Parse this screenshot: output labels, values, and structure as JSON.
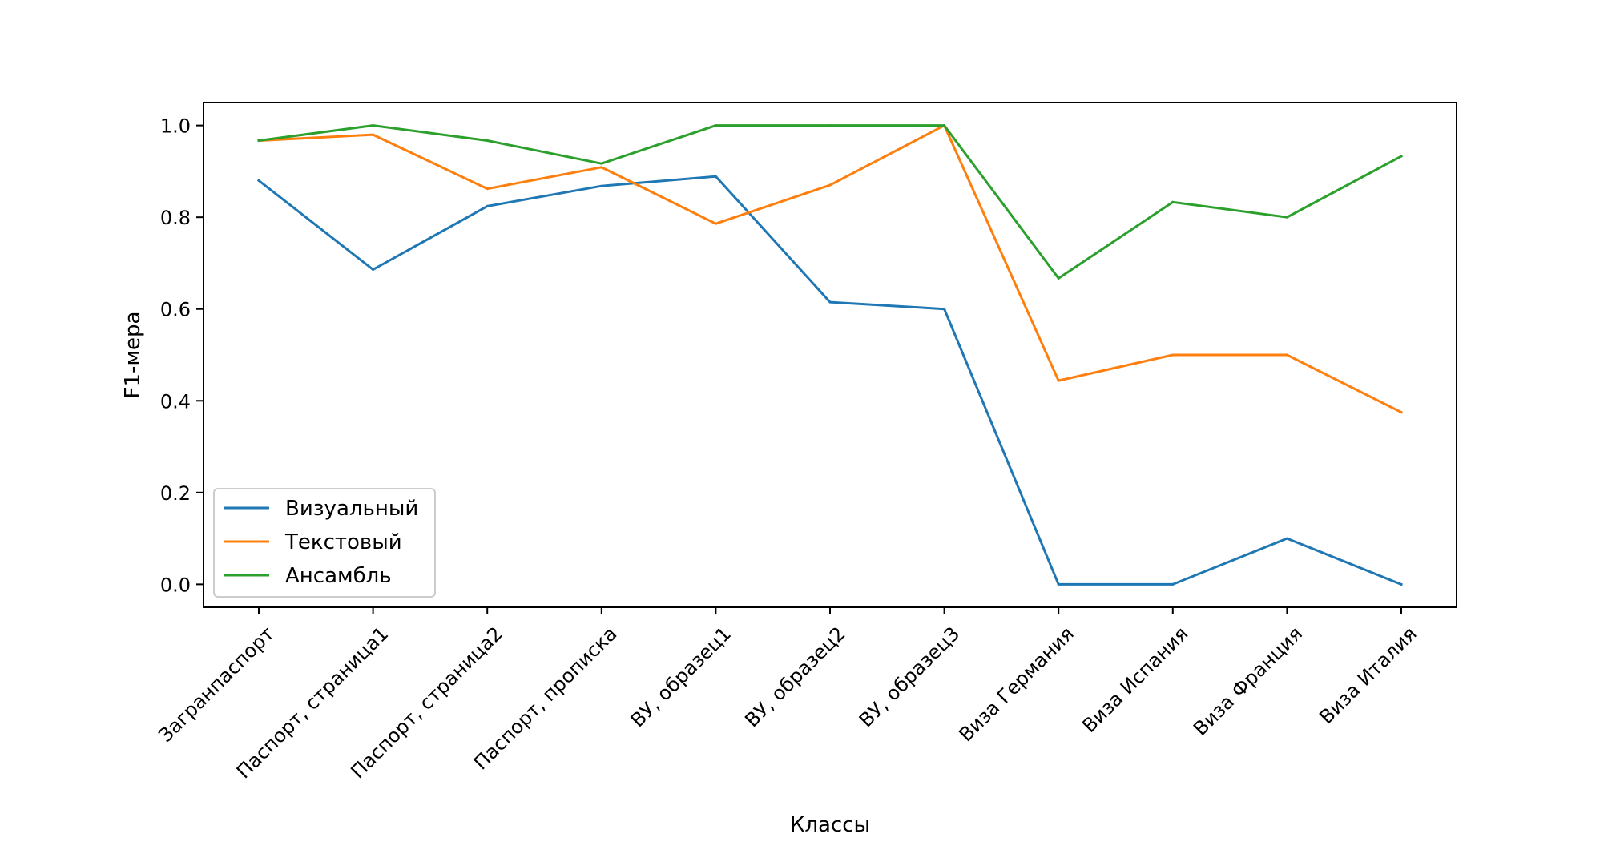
{
  "chart_data": {
    "type": "line",
    "xlabel": "Классы",
    "ylabel": "F1-мера",
    "ylim": [
      -0.05,
      1.05
    ],
    "yticks": [
      "0.0",
      "0.2",
      "0.4",
      "0.6",
      "0.8",
      "1.0"
    ],
    "ytick_values": [
      0.0,
      0.2,
      0.4,
      0.6,
      0.8,
      1.0
    ],
    "grid": false,
    "legend_position": "lower-left",
    "categories": [
      "Загранпаспорт",
      "Паспорт, страница1",
      "Паспорт, страница2",
      "Паспорт, прописка",
      "ВУ, образец1",
      "ВУ, образец2",
      "ВУ, образец3",
      "Виза Германия",
      "Виза Испания",
      "Виза Франция",
      "Виза Италия"
    ],
    "series": [
      {
        "name": "Визуальный",
        "color": "#1f77b4",
        "values": [
          0.88,
          0.686,
          0.824,
          0.868,
          0.889,
          0.615,
          0.6,
          0.0,
          0.0,
          0.1,
          0.0
        ]
      },
      {
        "name": "Текстовый",
        "color": "#ff7f0e",
        "values": [
          0.967,
          0.98,
          0.862,
          0.909,
          0.786,
          0.87,
          1.0,
          0.444,
          0.5,
          0.5,
          0.375
        ]
      },
      {
        "name": "Ансамбль",
        "color": "#2ca02c",
        "values": [
          0.967,
          1.0,
          0.967,
          0.917,
          1.0,
          1.0,
          1.0,
          0.667,
          0.833,
          0.8,
          0.933
        ]
      }
    ]
  }
}
